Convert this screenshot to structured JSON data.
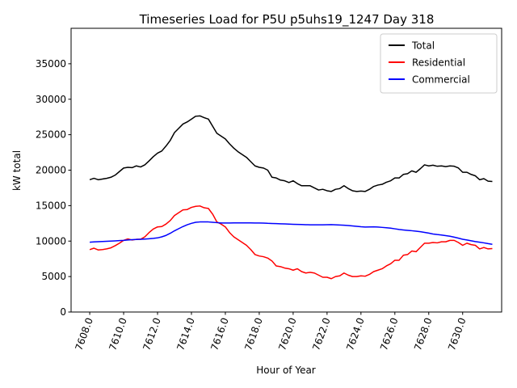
{
  "chart_data": {
    "type": "line",
    "title": "Timeseries Load for P5U p5uhs19_1247  Day 318",
    "xlabel": "Hour of Year",
    "ylabel": "kW total",
    "xlim": [
      7606.9,
      7632.3
    ],
    "ylim": [
      0,
      40000
    ],
    "x_ticks": [
      7608,
      7610,
      7612,
      7614,
      7616,
      7618,
      7620,
      7622,
      7624,
      7626,
      7628,
      7630
    ],
    "x_tick_labels": [
      "7608.0",
      "7610.0",
      "7612.0",
      "7614.0",
      "7616.0",
      "7618.0",
      "7620.0",
      "7622.0",
      "7624.0",
      "7626.0",
      "7628.0",
      "7630.0"
    ],
    "y_ticks": [
      0,
      5000,
      10000,
      15000,
      20000,
      25000,
      30000,
      35000
    ],
    "y_tick_labels": [
      "0",
      "5000",
      "10000",
      "15000",
      "20000",
      "25000",
      "30000",
      "35000"
    ],
    "legend_position": "top-right",
    "x": [
      7608.0,
      7608.25,
      7608.5,
      7608.75,
      7609.0,
      7609.25,
      7609.5,
      7609.75,
      7610.0,
      7610.25,
      7610.5,
      7610.75,
      7611.0,
      7611.25,
      7611.5,
      7611.75,
      7612.0,
      7612.25,
      7612.5,
      7612.75,
      7613.0,
      7613.25,
      7613.5,
      7613.75,
      7614.0,
      7614.25,
      7614.5,
      7614.75,
      7615.0,
      7615.25,
      7615.5,
      7615.75,
      7616.0,
      7616.25,
      7616.5,
      7616.75,
      7617.0,
      7617.25,
      7617.5,
      7617.75,
      7618.0,
      7618.25,
      7618.5,
      7618.75,
      7619.0,
      7619.25,
      7619.5,
      7619.75,
      7620.0,
      7620.25,
      7620.5,
      7620.75,
      7621.0,
      7621.25,
      7621.5,
      7621.75,
      7622.0,
      7622.25,
      7622.5,
      7622.75,
      7623.0,
      7623.25,
      7623.5,
      7623.75,
      7624.0,
      7624.25,
      7624.5,
      7624.75,
      7625.0,
      7625.25,
      7625.5,
      7625.75,
      7626.0,
      7626.25,
      7626.5,
      7626.75,
      7627.0,
      7627.25,
      7627.5,
      7627.75,
      7628.0,
      7628.25,
      7628.5,
      7628.75,
      7629.0,
      7629.25,
      7629.5,
      7629.75,
      7630.0,
      7630.25,
      7630.5,
      7630.75,
      7631.0,
      7631.25,
      7631.5,
      7631.75
    ],
    "series": [
      {
        "name": "Total",
        "color": "#000000",
        "values": [
          18650,
          18850,
          18650,
          18750,
          18850,
          19000,
          19300,
          19800,
          20300,
          20400,
          20350,
          20600,
          20450,
          20750,
          21300,
          21900,
          22400,
          22700,
          23400,
          24200,
          25300,
          25900,
          26500,
          26800,
          27200,
          27600,
          27650,
          27400,
          27200,
          26200,
          25200,
          24800,
          24400,
          23700,
          23100,
          22600,
          22200,
          21800,
          21200,
          20600,
          20400,
          20300,
          20000,
          19000,
          18900,
          18600,
          18500,
          18250,
          18500,
          18100,
          17800,
          17800,
          17800,
          17500,
          17200,
          17300,
          17100,
          17000,
          17300,
          17400,
          17800,
          17400,
          17100,
          17000,
          17050,
          17000,
          17300,
          17700,
          17900,
          18000,
          18300,
          18500,
          18900,
          18900,
          19400,
          19500,
          19900,
          19700,
          20200,
          20750,
          20600,
          20700,
          20550,
          20600,
          20500,
          20600,
          20550,
          20300,
          19700,
          19700,
          19400,
          19200,
          18650,
          18800,
          18450,
          18400
        ]
      },
      {
        "name": "Residential",
        "color": "#ff0000",
        "values": [
          8800,
          9000,
          8750,
          8800,
          8900,
          9050,
          9350,
          9700,
          10100,
          10300,
          10150,
          10250,
          10250,
          10600,
          11200,
          11700,
          12000,
          12050,
          12400,
          12900,
          13600,
          14000,
          14400,
          14450,
          14750,
          14900,
          14950,
          14700,
          14600,
          13800,
          12700,
          12400,
          12000,
          11200,
          10600,
          10200,
          9800,
          9400,
          8800,
          8100,
          7900,
          7800,
          7600,
          7200,
          6500,
          6400,
          6200,
          6100,
          5900,
          6100,
          5700,
          5500,
          5600,
          5500,
          5200,
          4900,
          4900,
          4700,
          5000,
          5100,
          5500,
          5200,
          5000,
          5000,
          5100,
          5050,
          5300,
          5700,
          5900,
          6100,
          6500,
          6800,
          7300,
          7300,
          8000,
          8100,
          8600,
          8500,
          9100,
          9700,
          9700,
          9800,
          9750,
          9900,
          9900,
          10100,
          10100,
          9800,
          9400,
          9700,
          9500,
          9400,
          8900,
          9100,
          8900,
          8950
        ]
      },
      {
        "name": "Commercial",
        "color": "#0000ff",
        "values": [
          9850,
          9880,
          9910,
          9940,
          9970,
          10000,
          10030,
          10070,
          10100,
          10150,
          10200,
          10230,
          10260,
          10290,
          10330,
          10380,
          10450,
          10600,
          10800,
          11100,
          11450,
          11750,
          12050,
          12300,
          12500,
          12650,
          12700,
          12700,
          12700,
          12650,
          12600,
          12550,
          12550,
          12550,
          12560,
          12560,
          12560,
          12560,
          12560,
          12550,
          12550,
          12540,
          12500,
          12480,
          12460,
          12440,
          12420,
          12400,
          12370,
          12350,
          12330,
          12310,
          12300,
          12290,
          12290,
          12300,
          12310,
          12320,
          12300,
          12270,
          12230,
          12190,
          12140,
          12080,
          12020,
          11980,
          12000,
          12010,
          11980,
          11930,
          11880,
          11820,
          11730,
          11640,
          11570,
          11510,
          11460,
          11400,
          11320,
          11230,
          11120,
          11000,
          10920,
          10860,
          10770,
          10680,
          10560,
          10410,
          10260,
          10160,
          10040,
          9930,
          9840,
          9750,
          9640,
          9550
        ]
      }
    ]
  }
}
